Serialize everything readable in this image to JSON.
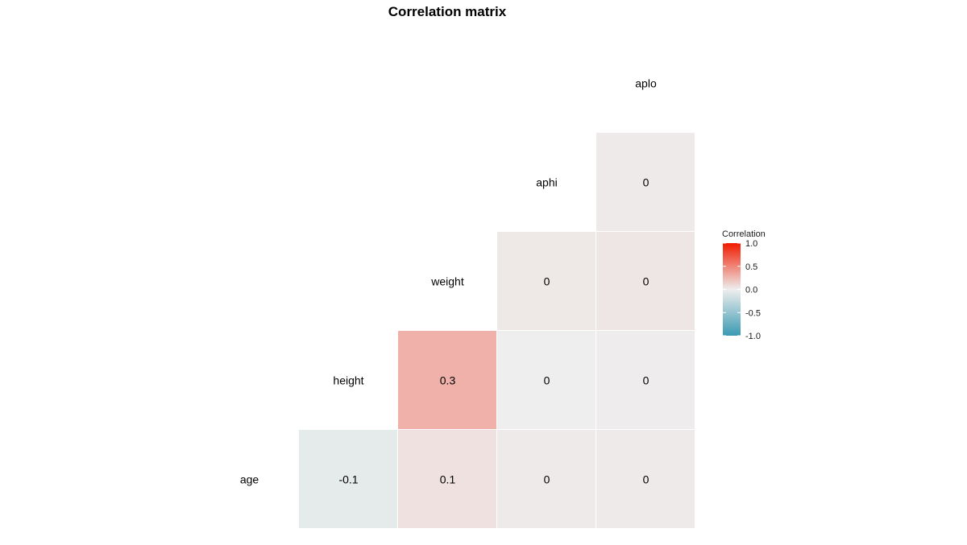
{
  "chart_data": {
    "type": "heatmap",
    "title": "Correlation matrix",
    "variables": [
      "age",
      "height",
      "weight",
      "aphi",
      "aplo"
    ],
    "cells": [
      {
        "row": "height",
        "col": "age",
        "value": -0.05,
        "label": "-0.1"
      },
      {
        "row": "weight",
        "col": "age",
        "value": 0.06,
        "label": "0.1"
      },
      {
        "row": "weight",
        "col": "height",
        "value": 0.29,
        "label": "0.3"
      },
      {
        "row": "aphi",
        "col": "age",
        "value": 0.02,
        "label": "0"
      },
      {
        "row": "aphi",
        "col": "height",
        "value": 0.0,
        "label": "0"
      },
      {
        "row": "aphi",
        "col": "weight",
        "value": 0.03,
        "label": "0"
      },
      {
        "row": "aplo",
        "col": "age",
        "value": 0.02,
        "label": "0"
      },
      {
        "row": "aplo",
        "col": "height",
        "value": 0.01,
        "label": "0"
      },
      {
        "row": "aplo",
        "col": "weight",
        "value": 0.04,
        "label": "0"
      },
      {
        "row": "aplo",
        "col": "aphi",
        "value": 0.02,
        "label": "0"
      }
    ],
    "scale": {
      "limits": [
        -1,
        1
      ],
      "low_color": "#3A9AB2",
      "mid_color": "#EEEEEE",
      "high_color": "#F11B00"
    },
    "legend": {
      "title": "Correlation",
      "position": "right",
      "ticks": [
        "1.0",
        "0.5",
        "0.0",
        "-0.5",
        "-1.0"
      ],
      "tick_values": [
        1,
        0.5,
        0,
        -0.5,
        -1
      ]
    }
  }
}
